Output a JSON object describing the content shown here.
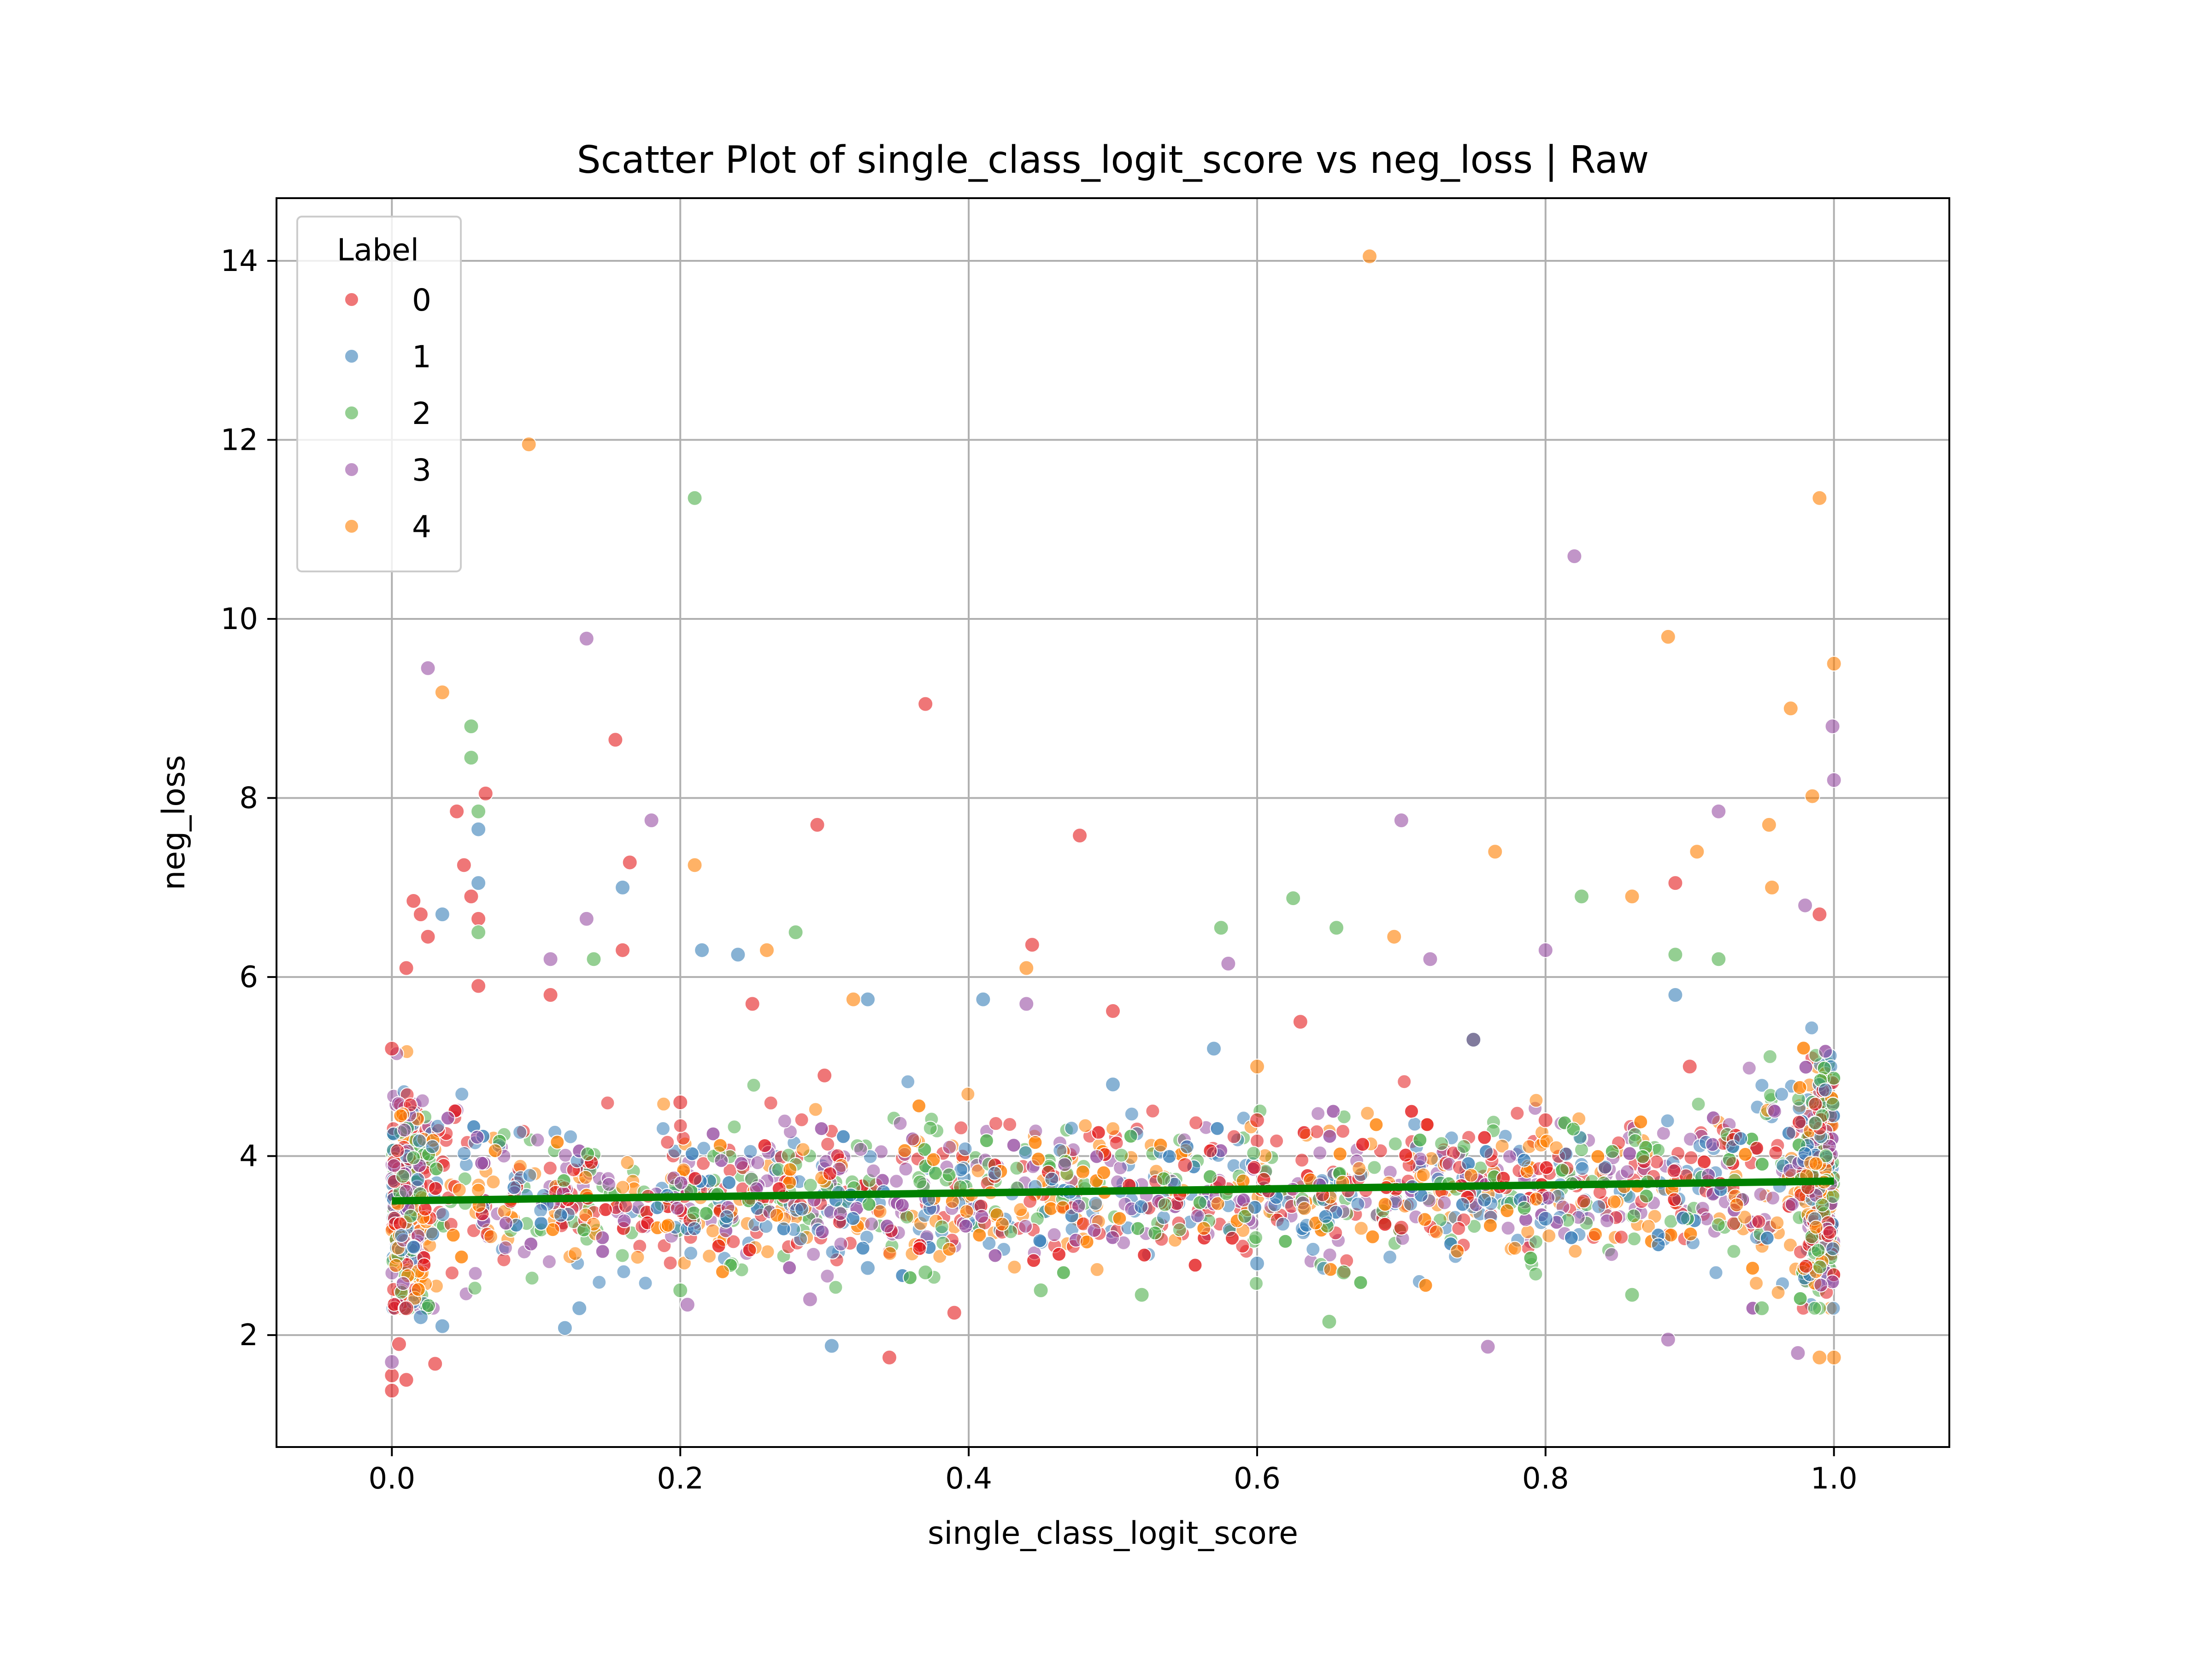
{
  "chart_data": {
    "type": "scatter",
    "title": "Scatter Plot of single_class_logit_score vs neg_loss | Raw",
    "xlabel": "single_class_logit_score",
    "ylabel": "neg_loss",
    "xlim": [
      -0.08,
      1.08
    ],
    "ylim": [
      0.75,
      14.7
    ],
    "xticks": [
      0.0,
      0.2,
      0.4,
      0.6,
      0.8,
      1.0
    ],
    "xtick_labels": [
      "0.0",
      "0.2",
      "0.4",
      "0.6",
      "0.8",
      "1.0"
    ],
    "yticks": [
      2,
      4,
      6,
      8,
      10,
      12,
      14
    ],
    "ytick_labels": [
      "2",
      "4",
      "6",
      "8",
      "10",
      "12",
      "14"
    ],
    "grid": true,
    "legend": {
      "title": "Label",
      "position": "top-left",
      "entries": [
        "0",
        "1",
        "2",
        "3",
        "4"
      ]
    },
    "series_colors": [
      "#e41a1c",
      "#377eb8",
      "#4daf4a",
      "#984ea3",
      "#ff7f00"
    ],
    "trend_line": {
      "color": "#008000",
      "x": [
        0.0,
        1.0
      ],
      "y": [
        3.5,
        3.72
      ]
    },
    "series": [
      {
        "name": "0",
        "points": [
          [
            0.0,
            1.38
          ],
          [
            0.0,
            1.55
          ],
          [
            0.005,
            1.9
          ],
          [
            0.01,
            2.3
          ],
          [
            0.0,
            5.2
          ],
          [
            0.01,
            6.1
          ],
          [
            0.015,
            6.85
          ],
          [
            0.02,
            6.7
          ],
          [
            0.025,
            6.45
          ],
          [
            0.045,
            7.85
          ],
          [
            0.05,
            7.25
          ],
          [
            0.055,
            6.9
          ],
          [
            0.06,
            6.65
          ],
          [
            0.065,
            8.05
          ],
          [
            0.155,
            8.65
          ],
          [
            0.16,
            6.3
          ],
          [
            0.165,
            7.28
          ],
          [
            0.06,
            5.9
          ],
          [
            0.11,
            5.8
          ],
          [
            0.295,
            7.7
          ],
          [
            0.37,
            9.05
          ],
          [
            0.477,
            7.58
          ],
          [
            0.444,
            6.36
          ],
          [
            0.345,
            1.75
          ],
          [
            0.39,
            2.25
          ],
          [
            0.63,
            5.5
          ],
          [
            0.5,
            5.62
          ],
          [
            0.89,
            7.05
          ],
          [
            0.99,
            6.7
          ],
          [
            0.01,
            1.5
          ],
          [
            0.03,
            1.68
          ],
          [
            0.25,
            5.7
          ],
          [
            0.2,
            4.6
          ],
          [
            0.3,
            4.9
          ],
          [
            0.6,
            4.4
          ],
          [
            0.7,
            3.2
          ],
          [
            0.8,
            4.4
          ],
          [
            0.9,
            5.0
          ],
          [
            0.75,
            5.3
          ],
          [
            0.55,
            3.9
          ]
        ]
      },
      {
        "name": "1",
        "points": [
          [
            0.035,
            6.7
          ],
          [
            0.06,
            7.65
          ],
          [
            0.06,
            7.05
          ],
          [
            0.16,
            7.0
          ],
          [
            0.215,
            6.3
          ],
          [
            0.24,
            6.25
          ],
          [
            0.41,
            5.75
          ],
          [
            0.33,
            5.75
          ],
          [
            0.305,
            1.88
          ],
          [
            0.12,
            2.08
          ],
          [
            0.13,
            2.3
          ],
          [
            0.57,
            5.2
          ],
          [
            0.75,
            5.3
          ],
          [
            0.89,
            5.8
          ],
          [
            0.47,
            3.6
          ],
          [
            0.6,
            2.8
          ],
          [
            0.8,
            3.3
          ],
          [
            0.02,
            2.2
          ],
          [
            0.035,
            2.1
          ],
          [
            0.5,
            4.8
          ],
          [
            0.33,
            2.75
          ]
        ]
      },
      {
        "name": "2",
        "points": [
          [
            0.055,
            8.8
          ],
          [
            0.055,
            8.45
          ],
          [
            0.06,
            7.85
          ],
          [
            0.21,
            11.35
          ],
          [
            0.28,
            6.5
          ],
          [
            0.575,
            6.55
          ],
          [
            0.625,
            6.88
          ],
          [
            0.655,
            6.55
          ],
          [
            0.825,
            6.9
          ],
          [
            0.65,
            2.15
          ],
          [
            0.89,
            6.25
          ],
          [
            0.92,
            6.2
          ],
          [
            0.2,
            2.5
          ],
          [
            0.37,
            2.7
          ],
          [
            0.45,
            2.5
          ],
          [
            0.52,
            2.45
          ],
          [
            0.66,
            2.7
          ],
          [
            0.86,
            2.45
          ],
          [
            0.95,
            2.3
          ],
          [
            0.14,
            6.2
          ],
          [
            0.06,
            6.5
          ]
        ]
      },
      {
        "name": "3",
        "points": [
          [
            0.025,
            9.45
          ],
          [
            0.135,
            9.78
          ],
          [
            0.18,
            7.75
          ],
          [
            0.135,
            6.65
          ],
          [
            0.82,
            10.7
          ],
          [
            0.7,
            7.75
          ],
          [
            0.92,
            7.85
          ],
          [
            0.999,
            8.8
          ],
          [
            1.0,
            8.2
          ],
          [
            0.885,
            1.95
          ],
          [
            0.76,
            1.87
          ],
          [
            0.205,
            2.34
          ],
          [
            0.29,
            2.4
          ],
          [
            0.44,
            5.7
          ],
          [
            0.58,
            6.15
          ],
          [
            0.72,
            6.2
          ],
          [
            0.8,
            6.3
          ],
          [
            0.98,
            6.8
          ],
          [
            0.975,
            1.8
          ],
          [
            0.0,
            1.7
          ],
          [
            0.11,
            6.2
          ]
        ]
      },
      {
        "name": "4",
        "points": [
          [
            0.035,
            9.18
          ],
          [
            0.095,
            11.95
          ],
          [
            0.21,
            7.25
          ],
          [
            0.678,
            14.05
          ],
          [
            0.885,
            9.8
          ],
          [
            0.99,
            11.35
          ],
          [
            1.0,
            9.5
          ],
          [
            0.97,
            9.0
          ],
          [
            0.985,
            8.02
          ],
          [
            0.905,
            7.4
          ],
          [
            0.955,
            7.7
          ],
          [
            0.765,
            7.4
          ],
          [
            0.86,
            6.9
          ],
          [
            0.957,
            7.0
          ],
          [
            0.695,
            6.45
          ],
          [
            0.44,
            6.1
          ],
          [
            0.26,
            6.3
          ],
          [
            1.0,
            1.75
          ],
          [
            0.99,
            1.75
          ],
          [
            0.6,
            5.0
          ],
          [
            0.32,
            5.75
          ]
        ]
      }
    ]
  }
}
